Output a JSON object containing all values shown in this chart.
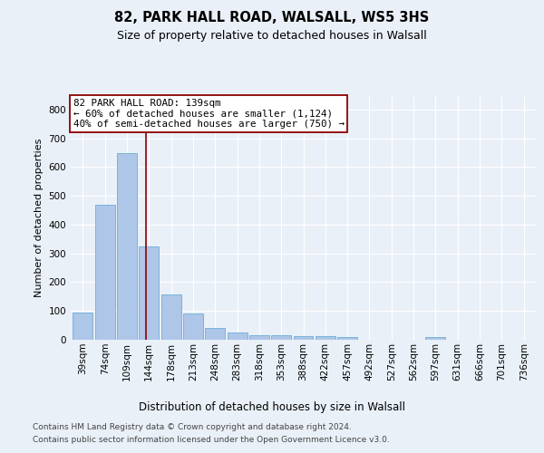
{
  "title1": "82, PARK HALL ROAD, WALSALL, WS5 3HS",
  "title2": "Size of property relative to detached houses in Walsall",
  "xlabel": "Distribution of detached houses by size in Walsall",
  "ylabel": "Number of detached properties",
  "footer1": "Contains HM Land Registry data © Crown copyright and database right 2024.",
  "footer2": "Contains public sector information licensed under the Open Government Licence v3.0.",
  "categories": [
    "39sqm",
    "74sqm",
    "109sqm",
    "144sqm",
    "178sqm",
    "213sqm",
    "248sqm",
    "283sqm",
    "318sqm",
    "353sqm",
    "388sqm",
    "422sqm",
    "457sqm",
    "492sqm",
    "527sqm",
    "562sqm",
    "597sqm",
    "631sqm",
    "666sqm",
    "701sqm",
    "736sqm"
  ],
  "values": [
    95,
    470,
    648,
    325,
    157,
    92,
    40,
    25,
    17,
    16,
    14,
    14,
    9,
    0,
    0,
    0,
    8,
    0,
    0,
    0,
    0
  ],
  "bar_color": "#aec6e8",
  "bar_edge_color": "#6aaed6",
  "property_line_x": 139,
  "property_line_label": "82 PARK HALL ROAD: 139sqm",
  "annotation_line1": "← 60% of detached houses are smaller (1,124)",
  "annotation_line2": "40% of semi-detached houses are larger (750) →",
  "ylim": [
    0,
    850
  ],
  "yticks": [
    0,
    100,
    200,
    300,
    400,
    500,
    600,
    700,
    800
  ],
  "bg_color": "#eaf0f8",
  "plot_bg_color": "#eaf0f8",
  "grid_color": "#ffffff",
  "bin_width": 35,
  "annot_fontsize": 7.8,
  "title1_fontsize": 10.5,
  "title2_fontsize": 9,
  "ylabel_fontsize": 8,
  "xlabel_fontsize": 8.5,
  "footer_fontsize": 6.5,
  "tick_fontsize": 7.5
}
